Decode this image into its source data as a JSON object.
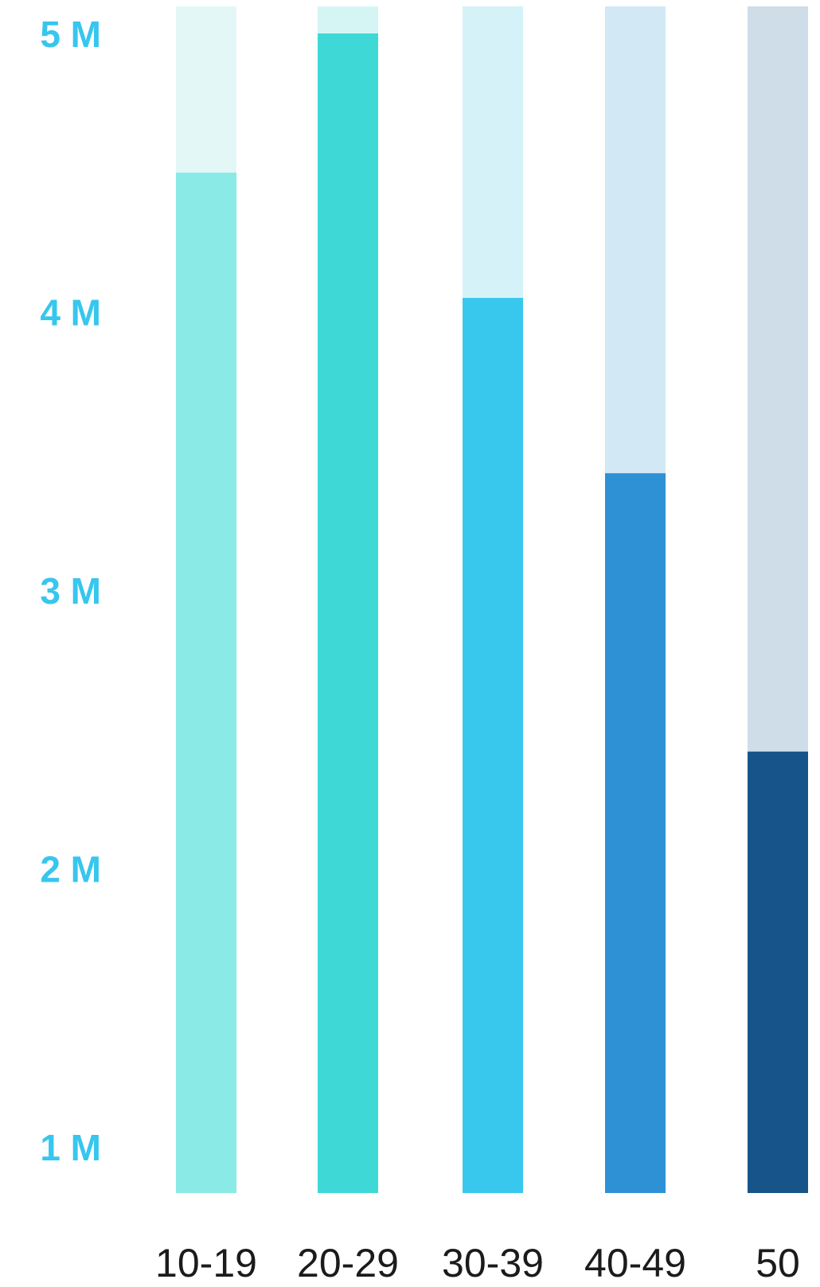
{
  "chart_data": {
    "type": "bar",
    "categories": [
      "10-19",
      "20-29",
      "30-39",
      "40-49",
      "50"
    ],
    "values": [
      4.5,
      5.0,
      4.05,
      3.42,
      2.42
    ],
    "ylim": [
      0.9,
      5.1
    ],
    "y_ticks": [
      {
        "value": 5,
        "label": "5 M"
      },
      {
        "value": 4,
        "label": "4 M"
      },
      {
        "value": 3,
        "label": "3 M"
      },
      {
        "value": 2,
        "label": "2 M"
      },
      {
        "value": 1,
        "label": "1 M"
      }
    ],
    "colors": {
      "bars": [
        "#8aeae6",
        "#3ed9d6",
        "#38c8ee",
        "#2e91d5",
        "#16548a"
      ],
      "tracks": [
        "#e3f7f7",
        "#d5f5f5",
        "#d5f2f9",
        "#d3e8f5",
        "#cfdde8"
      ],
      "ytick": "#37c6ee",
      "xtick": "#1b1b1b"
    },
    "grid": false,
    "legend": "none"
  }
}
